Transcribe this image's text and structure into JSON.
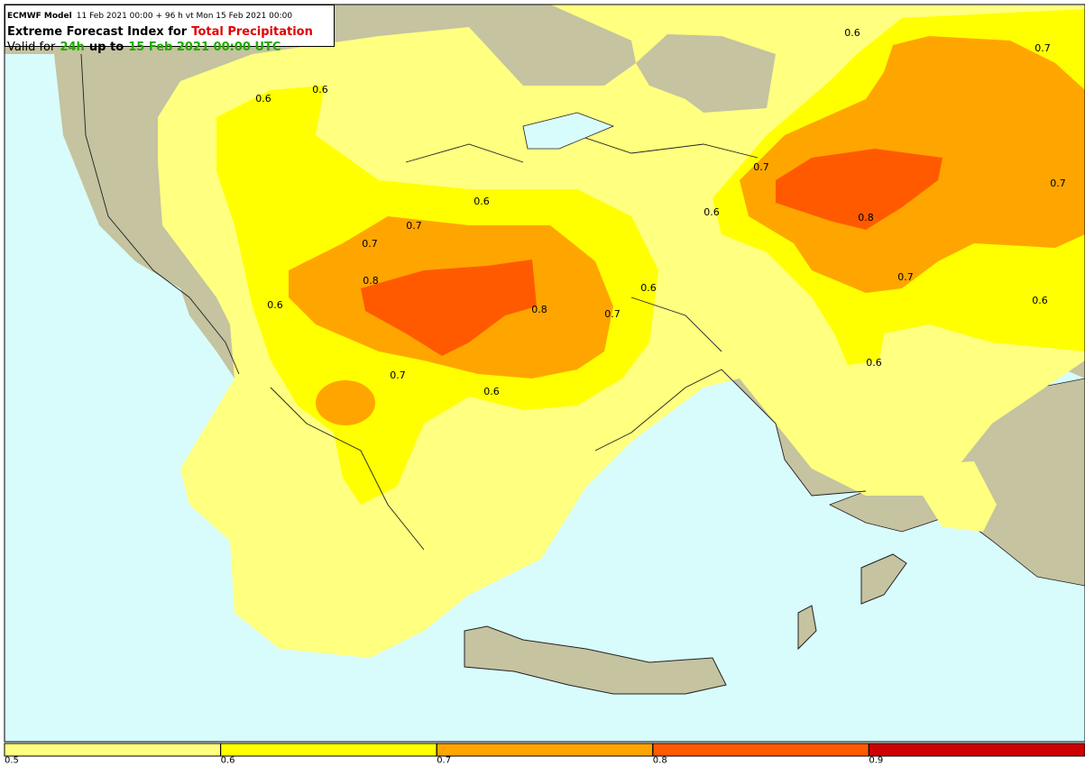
{
  "header": {
    "model": "ECMWF Model",
    "run": "11 Feb 2021 00:00 + 96 h vt Mon 15 Feb 2021 00:00",
    "title_prefix": "Extreme Forecast Index for",
    "parameter": "Total Precipitation",
    "valid_prefix": "Valid for",
    "period": "24h",
    "up_to": "up to",
    "valid_time": "15 Feb 2021 00:00 UTC"
  },
  "contour_labels": [
    "0.6",
    "0.7",
    "0.6",
    "0.6",
    "0.7",
    "0.7",
    "0.6",
    "0.7",
    "0.6",
    "0.8",
    "0.7",
    "0.8",
    "0.7",
    "0.6",
    "0.6",
    "0.6",
    "0.8",
    "0.7",
    "0.6",
    "0.7",
    "0.6"
  ],
  "colorbar": {
    "xlim": [
      0.5,
      1.0
    ],
    "ticks": [
      0.5,
      0.6,
      0.7,
      0.8,
      0.9
    ],
    "colors": [
      "#ffff80",
      "#ffff00",
      "#ffa500",
      "#ff5a00",
      "#cc0000"
    ]
  }
}
